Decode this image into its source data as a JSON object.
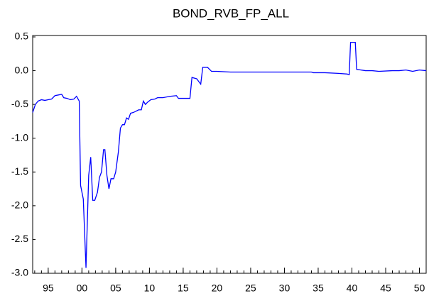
{
  "chart_data": {
    "type": "line",
    "title": "BOND_RVB_FP_ALL",
    "x": [
      1992.7,
      1993.1,
      1993.5,
      1994.0,
      1994.5,
      1995.0,
      1995.5,
      1996.0,
      1996.5,
      1997.0,
      1997.3,
      1997.8,
      1998.3,
      1998.8,
      1999.2,
      1999.6,
      1999.8,
      2000.2,
      2000.6,
      2001.0,
      2001.3,
      2001.6,
      2001.9,
      2002.3,
      2002.6,
      2002.9,
      2003.2,
      2003.4,
      2003.7,
      2004.0,
      2004.3,
      2004.7,
      2005.0,
      2005.4,
      2005.7,
      2006.0,
      2006.3,
      2006.6,
      2006.9,
      2007.2,
      2007.6,
      2008.0,
      2008.4,
      2008.8,
      2009.1,
      2009.4,
      2009.8,
      2010.2,
      2010.8,
      2011.2,
      2012.0,
      2013.0,
      2014.0,
      2014.3,
      2015.0,
      2016.0,
      2016.3,
      2017.0,
      2017.6,
      2017.9,
      2018.6,
      2019.2,
      2020.0,
      2022.0,
      2025.0,
      2030.0,
      2034.0,
      2034.3,
      2036.0,
      2038.0,
      2039.3,
      2039.6,
      2039.8,
      2040.5,
      2040.7,
      2042.0,
      2043.0,
      2044.0,
      2046.0,
      2047.0,
      2048.0,
      2049.0,
      2050.0,
      2051.0
    ],
    "series": [
      {
        "name": "BOND_RVB_FP_ALL",
        "color": "#0000ff",
        "values": [
          -0.62,
          -0.5,
          -0.45,
          -0.43,
          -0.44,
          -0.43,
          -0.42,
          -0.37,
          -0.36,
          -0.35,
          -0.4,
          -0.41,
          -0.43,
          -0.42,
          -0.38,
          -0.45,
          -1.7,
          -1.9,
          -2.92,
          -1.55,
          -1.28,
          -1.92,
          -1.92,
          -1.8,
          -1.58,
          -1.5,
          -1.17,
          -1.17,
          -1.55,
          -1.75,
          -1.6,
          -1.6,
          -1.5,
          -1.2,
          -0.85,
          -0.8,
          -0.8,
          -0.7,
          -0.72,
          -0.63,
          -0.62,
          -0.6,
          -0.58,
          -0.58,
          -0.45,
          -0.5,
          -0.46,
          -0.43,
          -0.42,
          -0.4,
          -0.4,
          -0.38,
          -0.37,
          -0.41,
          -0.41,
          -0.41,
          -0.1,
          -0.12,
          -0.2,
          0.05,
          0.05,
          -0.01,
          -0.01,
          -0.02,
          -0.02,
          -0.02,
          -0.02,
          -0.03,
          -0.03,
          -0.04,
          -0.05,
          -0.06,
          0.42,
          0.42,
          0.02,
          0.0,
          0.0,
          -0.01,
          0.0,
          0.0,
          0.01,
          -0.01,
          0.01,
          0.0
        ]
      }
    ],
    "xlim": [
      1992.7,
      2051.0
    ],
    "xticks": [
      {
        "value": 1995,
        "label": "95"
      },
      {
        "value": 2000,
        "label": "00"
      },
      {
        "value": 2005,
        "label": "05"
      },
      {
        "value": 2010,
        "label": "10"
      },
      {
        "value": 2015,
        "label": "15"
      },
      {
        "value": 2020,
        "label": "20"
      },
      {
        "value": 2025,
        "label": "25"
      },
      {
        "value": 2030,
        "label": "30"
      },
      {
        "value": 2035,
        "label": "35"
      },
      {
        "value": 2040,
        "label": "40"
      },
      {
        "value": 2045,
        "label": "45"
      },
      {
        "value": 2050,
        "label": "50"
      }
    ],
    "ylim": [
      -3.0,
      0.5
    ],
    "yticks": [
      {
        "value": 0.5,
        "label": "0.5"
      },
      {
        "value": 0.0,
        "label": "0.0"
      },
      {
        "value": -0.5,
        "label": "-0.5"
      },
      {
        "value": -1.0,
        "label": "-1.0"
      },
      {
        "value": -1.5,
        "label": "-1.5"
      },
      {
        "value": -2.0,
        "label": "-2.0"
      },
      {
        "value": -2.5,
        "label": "-2.5"
      },
      {
        "value": -3.0,
        "label": "-3.0"
      }
    ]
  }
}
